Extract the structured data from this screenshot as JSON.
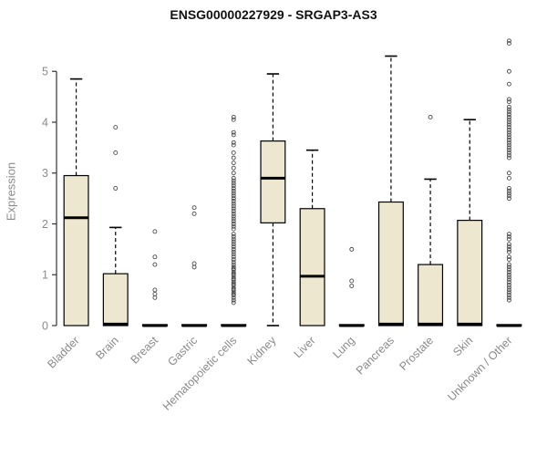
{
  "chart_data": {
    "type": "boxplot",
    "title": "ENSG00000227929 - SRGAP3-AS3",
    "ylabel": "Expression",
    "ylim": [
      0,
      5.65
    ],
    "yticks": [
      0,
      1,
      2,
      3,
      4,
      5
    ],
    "grid": false,
    "box_fill": "#EDE7CF",
    "box_border": "#000000",
    "axis_color": "#333333",
    "label_color": "#8a8a8a",
    "categories": [
      "Bladder",
      "Brain",
      "Breast",
      "Gastric",
      "Hematopoietic cells",
      "Kidney",
      "Liver",
      "Lung",
      "Pancreas",
      "Prostate",
      "Skin",
      "Unknown / Other"
    ],
    "boxes": [
      {
        "whisker_low": 0,
        "q1": 0,
        "median": 2.12,
        "q3": 2.95,
        "whisker_high": 4.85,
        "outliers": []
      },
      {
        "whisker_low": 0,
        "q1": 0,
        "median": 0.03,
        "q3": 1.02,
        "whisker_high": 1.93,
        "outliers": [
          2.7,
          3.4,
          3.9
        ]
      },
      {
        "whisker_low": 0,
        "q1": 0,
        "median": 0,
        "q3": 0.02,
        "whisker_high": 0.02,
        "outliers": [
          0.55,
          0.62,
          0.7,
          1.2,
          1.35,
          1.85
        ]
      },
      {
        "whisker_low": 0,
        "q1": 0,
        "median": 0,
        "q3": 0.02,
        "whisker_high": 0.02,
        "outliers": [
          1.15,
          1.22,
          2.2,
          2.32
        ]
      },
      {
        "whisker_low": 0,
        "q1": 0,
        "median": 0,
        "q3": 0.02,
        "whisker_high": 0.02,
        "outliers": [
          0.45,
          0.5,
          0.55,
          0.6,
          0.62,
          0.65,
          0.7,
          0.72,
          0.75,
          0.8,
          0.82,
          0.85,
          0.9,
          0.92,
          0.95,
          1.0,
          1.02,
          1.05,
          1.1,
          1.12,
          1.15,
          1.2,
          1.25,
          1.3,
          1.35,
          1.4,
          1.45,
          1.5,
          1.55,
          1.6,
          1.65,
          1.7,
          1.75,
          1.8,
          1.9,
          1.95,
          2.0,
          2.05,
          2.1,
          2.15,
          2.2,
          2.25,
          2.3,
          2.35,
          2.4,
          2.45,
          2.5,
          2.55,
          2.6,
          2.65,
          2.7,
          2.75,
          2.8,
          2.85,
          2.9,
          3.0,
          3.1,
          3.2,
          3.3,
          3.4,
          3.55,
          3.6,
          3.75,
          3.8,
          4.05,
          4.1
        ]
      },
      {
        "whisker_low": 0,
        "q1": 2.02,
        "median": 2.9,
        "q3": 3.63,
        "whisker_high": 4.95,
        "outliers": []
      },
      {
        "whisker_low": 0,
        "q1": 0,
        "median": 0.97,
        "q3": 2.3,
        "whisker_high": 3.45,
        "outliers": []
      },
      {
        "whisker_low": 0,
        "q1": 0,
        "median": 0,
        "q3": 0.02,
        "whisker_high": 0.02,
        "outliers": [
          0.78,
          0.88,
          1.5
        ]
      },
      {
        "whisker_low": 0,
        "q1": 0,
        "median": 0.03,
        "q3": 2.43,
        "whisker_high": 5.3,
        "outliers": []
      },
      {
        "whisker_low": 0,
        "q1": 0,
        "median": 0.03,
        "q3": 1.2,
        "whisker_high": 2.88,
        "outliers": [
          4.1
        ]
      },
      {
        "whisker_low": 0,
        "q1": 0,
        "median": 0.03,
        "q3": 2.07,
        "whisker_high": 4.05,
        "outliers": []
      },
      {
        "whisker_low": 0,
        "q1": 0,
        "median": 0,
        "q3": 0.02,
        "whisker_high": 0.02,
        "outliers": [
          0.5,
          0.55,
          0.6,
          0.65,
          0.7,
          0.75,
          0.8,
          0.85,
          0.9,
          0.95,
          1.0,
          1.05,
          1.1,
          1.15,
          1.2,
          1.3,
          1.35,
          1.45,
          1.5,
          1.55,
          1.6,
          1.7,
          1.75,
          1.8,
          2.5,
          2.55,
          2.6,
          2.65,
          2.7,
          2.9,
          3.0,
          3.3,
          3.35,
          3.4,
          3.45,
          3.5,
          3.55,
          3.6,
          3.65,
          3.7,
          3.75,
          3.8,
          3.85,
          3.9,
          3.95,
          4.0,
          4.05,
          4.1,
          4.15,
          4.2,
          4.25,
          4.3,
          4.4,
          4.45,
          4.75,
          5.0,
          5.55,
          5.6
        ]
      }
    ]
  }
}
